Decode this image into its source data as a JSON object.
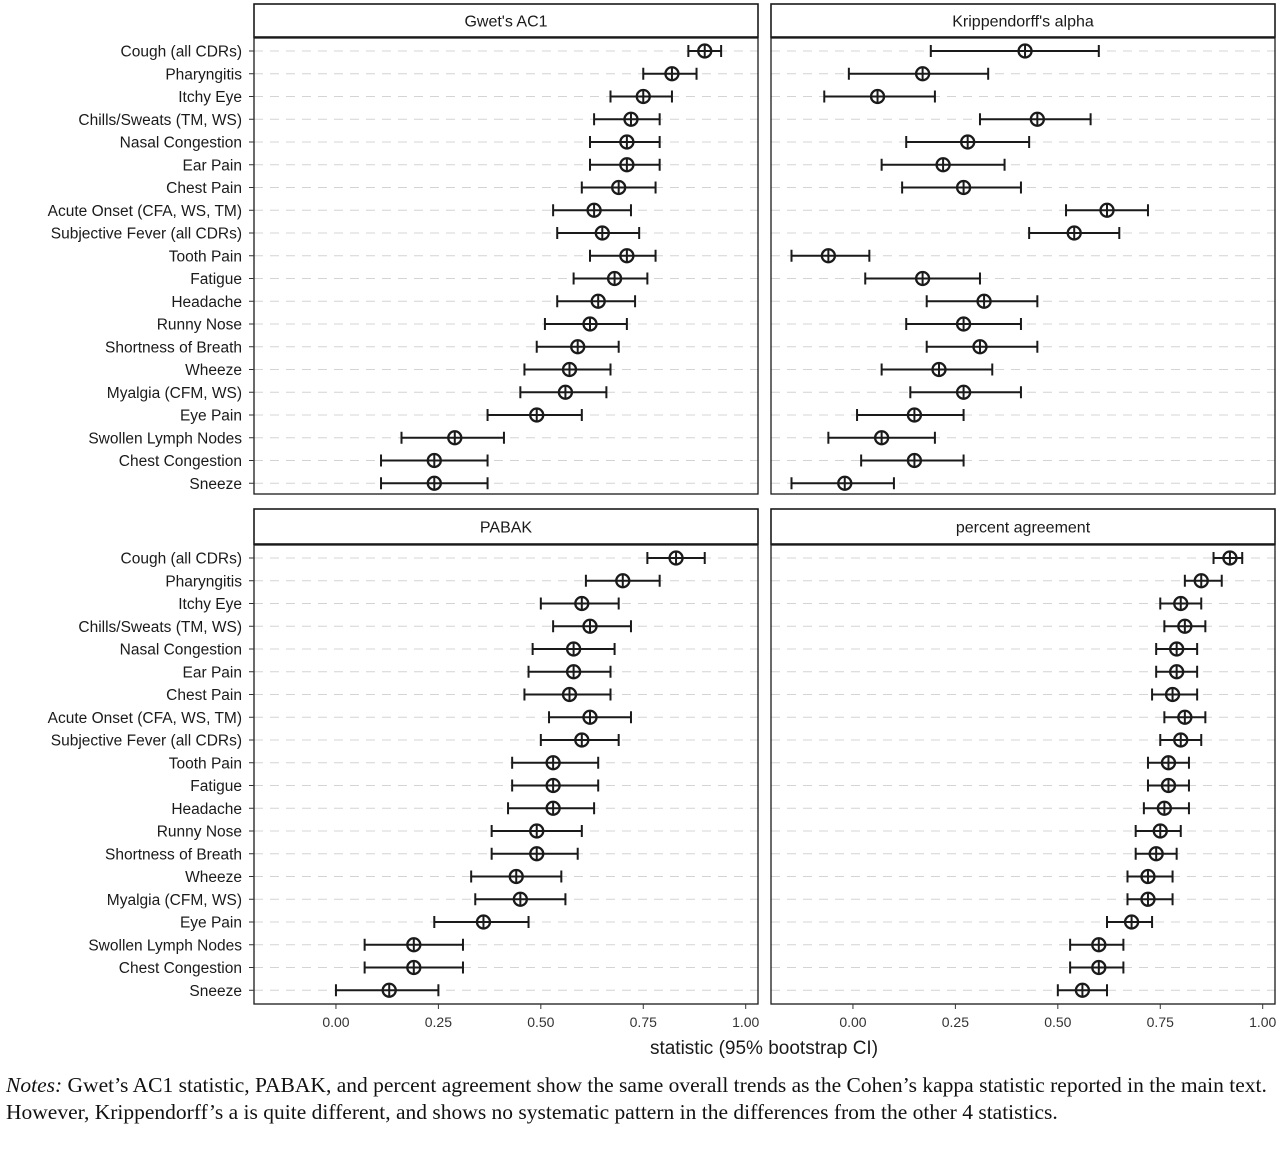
{
  "chart_data": {
    "type": "forest",
    "categories": [
      "Cough (all CDRs)",
      "Pharyngitis",
      "Itchy Eye",
      "Chills/Sweats (TM, WS)",
      "Nasal Congestion",
      "Ear Pain",
      "Chest Pain",
      "Acute Onset (CFA, WS, TM)",
      "Subjective Fever (all CDRs)",
      "Tooth Pain",
      "Fatigue",
      "Headache",
      "Runny Nose",
      "Shortness of Breath",
      "Wheeze",
      "Myalgia (CFM, WS)",
      "Eye Pain",
      "Swollen Lymph Nodes",
      "Chest Congestion",
      "Sneeze"
    ],
    "xlabel": "statistic (95% bootstrap CI)",
    "xlim": [
      -0.2,
      1.03
    ],
    "xticks": [
      "0.00",
      "0.25",
      "0.50",
      "0.75",
      "1.00"
    ],
    "xtick_values": [
      0,
      0.25,
      0.5,
      0.75,
      1.0
    ],
    "grid": "dashed horizontal",
    "panels": [
      {
        "title": "Gwet's AC1",
        "estimate": [
          0.9,
          0.82,
          0.75,
          0.72,
          0.71,
          0.71,
          0.69,
          0.63,
          0.65,
          0.71,
          0.68,
          0.64,
          0.62,
          0.59,
          0.57,
          0.56,
          0.49,
          0.29,
          0.24,
          0.24
        ],
        "lower": [
          0.86,
          0.75,
          0.67,
          0.63,
          0.62,
          0.62,
          0.6,
          0.53,
          0.54,
          0.62,
          0.58,
          0.54,
          0.51,
          0.49,
          0.46,
          0.45,
          0.37,
          0.16,
          0.11,
          0.11
        ],
        "upper": [
          0.94,
          0.88,
          0.82,
          0.79,
          0.79,
          0.79,
          0.78,
          0.72,
          0.74,
          0.78,
          0.76,
          0.73,
          0.71,
          0.69,
          0.67,
          0.66,
          0.6,
          0.41,
          0.37,
          0.37
        ]
      },
      {
        "title": "Krippendorff's alpha",
        "estimate": [
          0.42,
          0.17,
          0.06,
          0.45,
          0.28,
          0.22,
          0.27,
          0.62,
          0.54,
          -0.06,
          0.17,
          0.32,
          0.27,
          0.31,
          0.21,
          0.27,
          0.15,
          0.07,
          0.15,
          -0.02
        ],
        "lower": [
          0.19,
          -0.01,
          -0.07,
          0.31,
          0.13,
          0.07,
          0.12,
          0.52,
          0.43,
          -0.15,
          0.03,
          0.18,
          0.13,
          0.18,
          0.07,
          0.14,
          0.01,
          -0.06,
          0.02,
          -0.15
        ],
        "upper": [
          0.6,
          0.33,
          0.2,
          0.58,
          0.43,
          0.37,
          0.41,
          0.72,
          0.65,
          0.04,
          0.31,
          0.45,
          0.41,
          0.45,
          0.34,
          0.41,
          0.27,
          0.2,
          0.27,
          0.1
        ]
      },
      {
        "title": "PABAK",
        "estimate": [
          0.83,
          0.7,
          0.6,
          0.62,
          0.58,
          0.58,
          0.57,
          0.62,
          0.6,
          0.53,
          0.53,
          0.53,
          0.49,
          0.49,
          0.44,
          0.45,
          0.36,
          0.19,
          0.19,
          0.13
        ],
        "lower": [
          0.76,
          0.61,
          0.5,
          0.53,
          0.48,
          0.47,
          0.46,
          0.52,
          0.5,
          0.43,
          0.43,
          0.42,
          0.38,
          0.38,
          0.33,
          0.34,
          0.24,
          0.07,
          0.07,
          0.0
        ],
        "upper": [
          0.9,
          0.79,
          0.69,
          0.72,
          0.68,
          0.67,
          0.67,
          0.72,
          0.69,
          0.64,
          0.64,
          0.63,
          0.6,
          0.59,
          0.55,
          0.56,
          0.47,
          0.31,
          0.31,
          0.25
        ]
      },
      {
        "title": "percent agreement",
        "estimate": [
          0.92,
          0.85,
          0.8,
          0.81,
          0.79,
          0.79,
          0.78,
          0.81,
          0.8,
          0.77,
          0.77,
          0.76,
          0.75,
          0.74,
          0.72,
          0.72,
          0.68,
          0.6,
          0.6,
          0.56
        ],
        "lower": [
          0.88,
          0.81,
          0.75,
          0.76,
          0.74,
          0.74,
          0.73,
          0.76,
          0.75,
          0.72,
          0.72,
          0.71,
          0.69,
          0.69,
          0.67,
          0.67,
          0.62,
          0.53,
          0.53,
          0.5
        ],
        "upper": [
          0.95,
          0.9,
          0.85,
          0.86,
          0.84,
          0.84,
          0.84,
          0.86,
          0.85,
          0.82,
          0.82,
          0.82,
          0.8,
          0.79,
          0.78,
          0.78,
          0.73,
          0.66,
          0.66,
          0.62
        ]
      }
    ]
  },
  "notes": {
    "label": "Notes:",
    "text": "Gwet’s AC1 statistic, PABAK, and percent agreement show the same overall trends as the Cohen’s kappa statistic reported in the main text. However, Krippendorff’s a is quite different, and shows no systematic pattern in the differences from the other 4 statistics."
  }
}
